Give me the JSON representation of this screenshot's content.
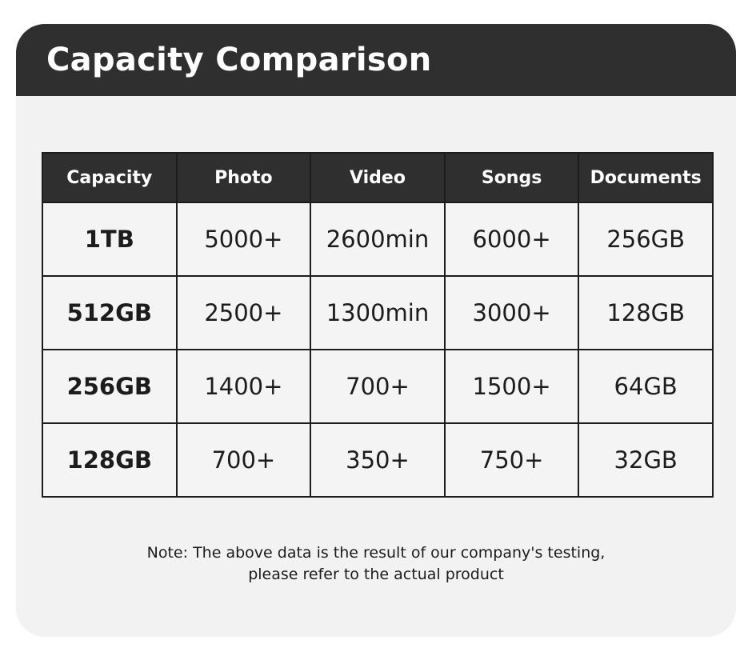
{
  "header": {
    "title": "Capacity Comparison"
  },
  "table": {
    "columns": [
      "Capacity",
      "Photo",
      "Video",
      "Songs",
      "Documents"
    ],
    "rows": [
      [
        "1TB",
        "5000+",
        "2600min",
        "6000+",
        "256GB"
      ],
      [
        "512GB",
        "2500+",
        "1300min",
        "3000+",
        "128GB"
      ],
      [
        "256GB",
        "1400+",
        "700+",
        "1500+",
        "64GB"
      ],
      [
        "128GB",
        "700+",
        "350+",
        "750+",
        "32GB"
      ]
    ]
  },
  "note": {
    "label": "Note:",
    "line1": "The above data is the result of our company's testing,",
    "line2": "please refer to the actual product"
  },
  "colors": {
    "header_bg": "#2f2f2f",
    "card_bg": "#f2f2f2",
    "text": "#1c1c1c"
  }
}
